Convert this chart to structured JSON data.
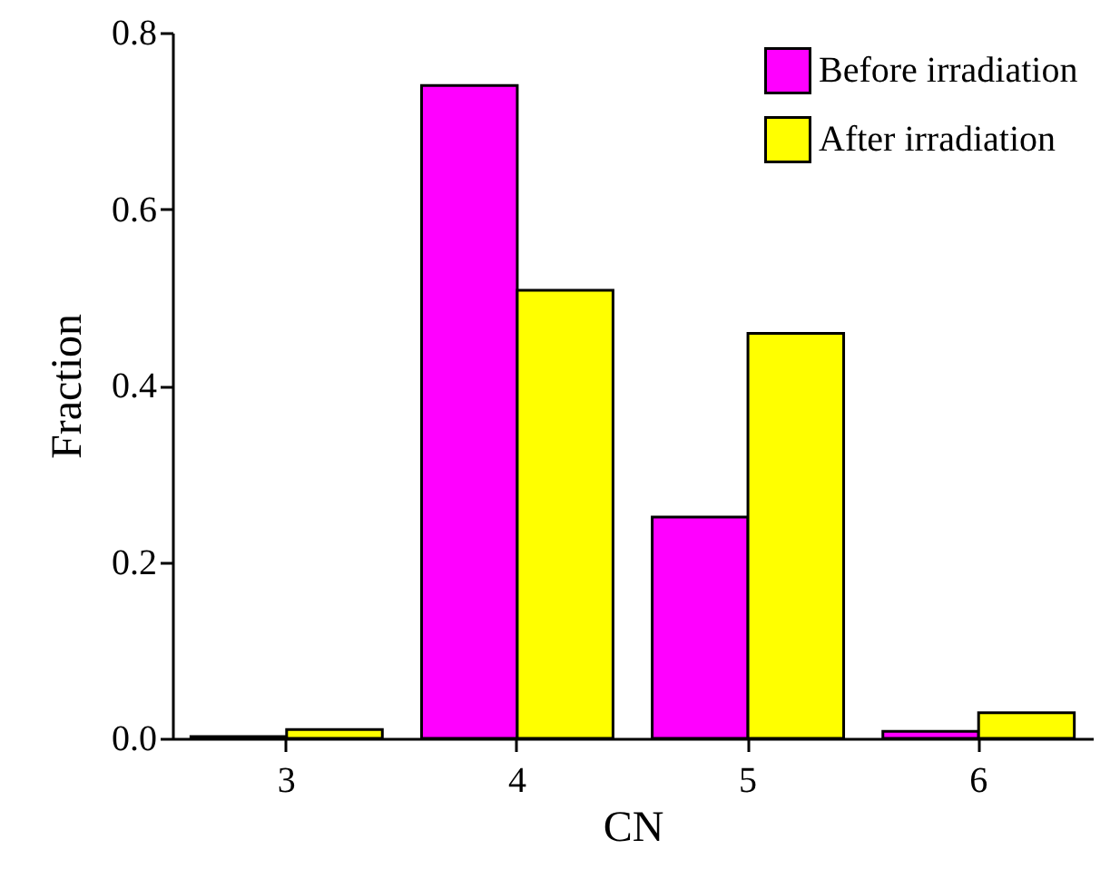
{
  "chart_data": {
    "type": "bar",
    "xlabel": "CN",
    "ylabel": "Fraction",
    "categories": [
      "3",
      "4",
      "5",
      "6"
    ],
    "series": [
      {
        "name": "Before irradiation",
        "color": "#ff00ff",
        "values": [
          0.002,
          0.74,
          0.251,
          0.008
        ]
      },
      {
        "name": "After irradiation",
        "color": "#ffff00",
        "values": [
          0.01,
          0.508,
          0.459,
          0.029
        ]
      }
    ],
    "ylim": [
      0,
      0.8
    ],
    "yticks": [
      {
        "value": 0,
        "label": "0.0"
      },
      0.2,
      0.4,
      0.6,
      0.8
    ],
    "grid": false,
    "legend": "top right"
  }
}
